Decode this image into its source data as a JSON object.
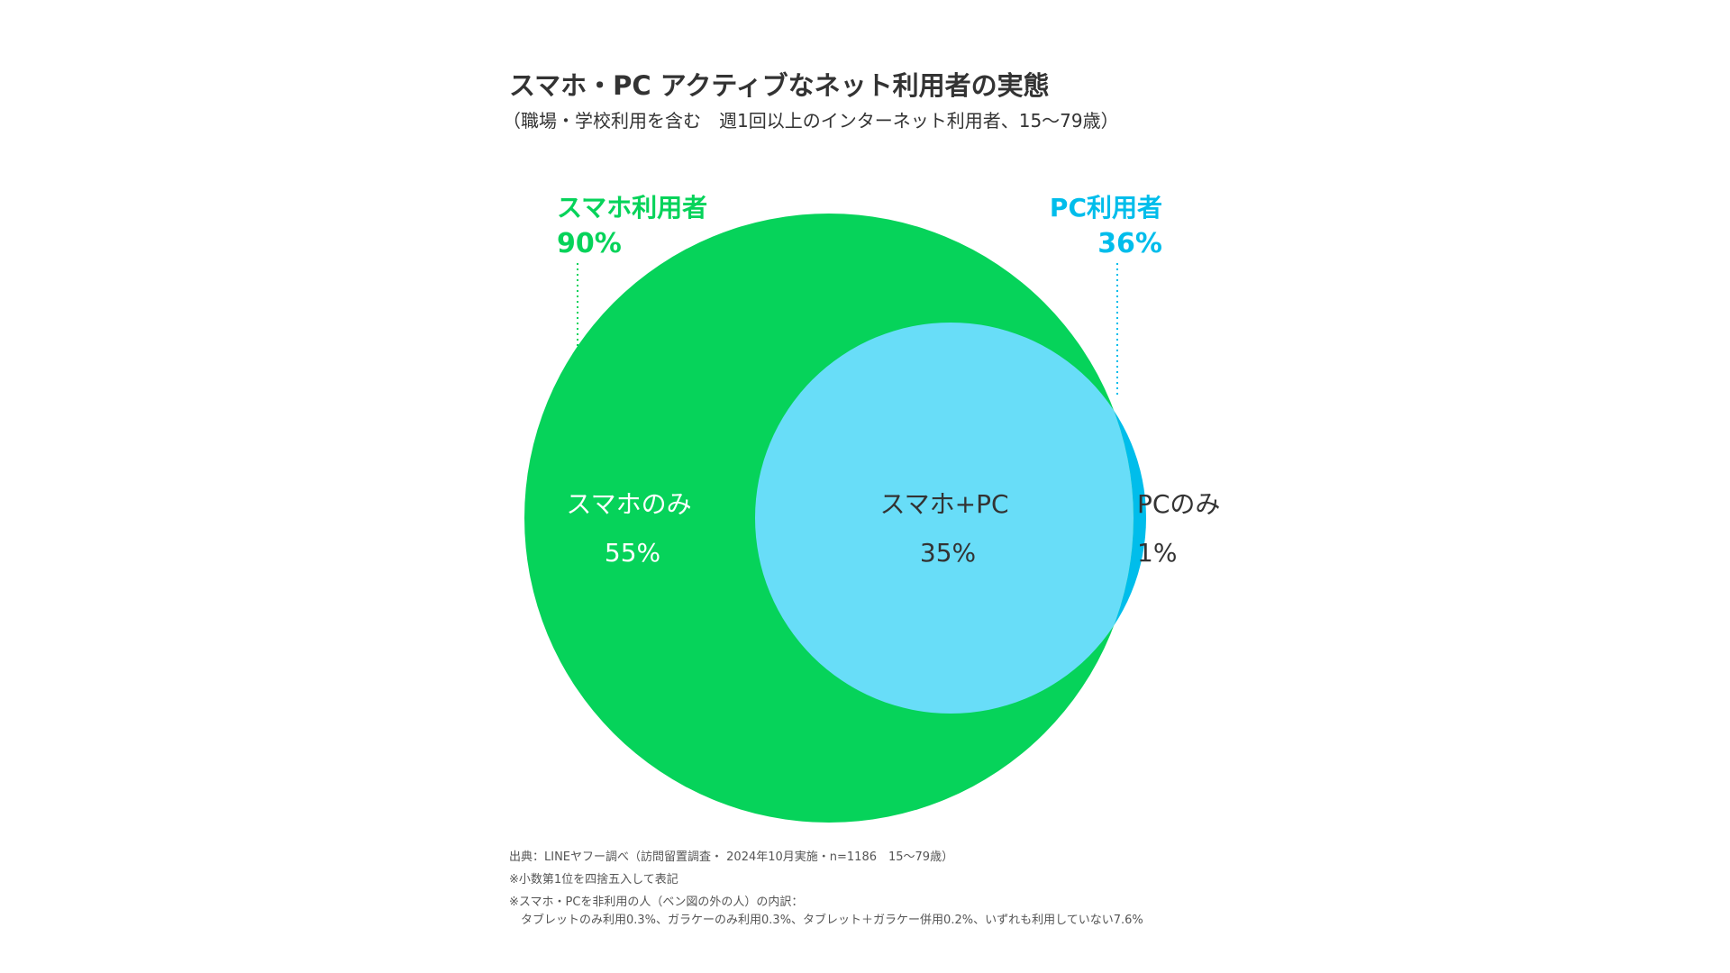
{
  "header": {
    "title": "スマホ・PC アクティブなネット利用者の実態",
    "subtitle": "（職場・学校利用を含む　週1回以上のインターネット利用者、15～79歳）"
  },
  "colors": {
    "smartphone": "#06D35A",
    "pc": "#00BDEB",
    "overlap": "#68DDF8",
    "text_dark": "#333333",
    "text_white": "#FFFFFF"
  },
  "chart_data": {
    "type": "venn",
    "sets": [
      {
        "name": "スマホ利用者",
        "value": "90%"
      },
      {
        "name": "PC利用者",
        "value": "36%"
      }
    ],
    "regions": [
      {
        "label": "スマホのみ",
        "value": "55%"
      },
      {
        "label": "スマホ+PC",
        "value": "35%"
      },
      {
        "label": "PCのみ",
        "value": "1%"
      }
    ]
  },
  "footnotes": [
    "出典：LINEヤフー調べ（訪問留置調査・ 2024年10月実施・n=1186　15～79歳）",
    "※小数第1位を四捨五入して表記",
    "※スマホ・PCを非利用の人（ベン図の外の人）の内訳：",
    "　タブレットのみ利用0.3%、ガラケーのみ利用0.3%、タブレット＋ガラケー併用0.2%、いずれも利用していない7.6%"
  ]
}
